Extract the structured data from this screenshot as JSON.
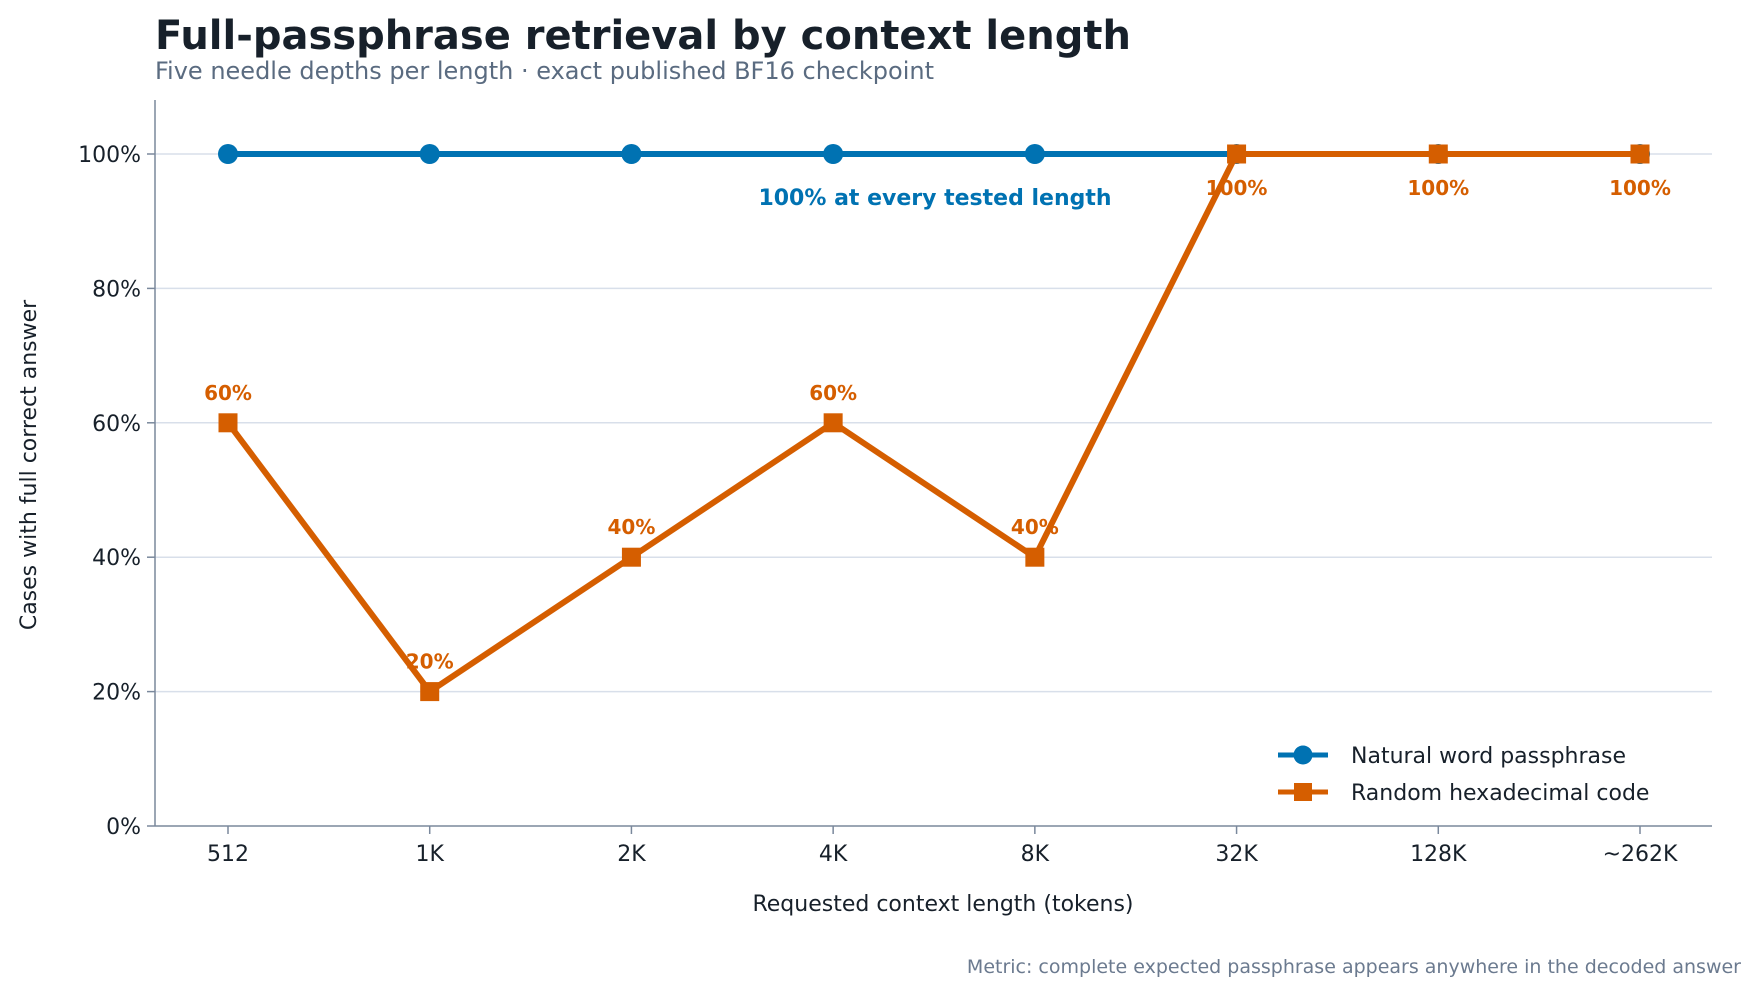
{
  "chart_data": {
    "type": "line",
    "title": "Full-passphrase retrieval by context length",
    "subtitle": "Five needle depths per length · exact published BF16 checkpoint",
    "xlabel": "Requested context length (tokens)",
    "ylabel": "Cases with full correct answer",
    "categories": [
      "512",
      "1K",
      "2K",
      "4K",
      "8K",
      "32K",
      "128K",
      "~262K"
    ],
    "ylim": [
      0,
      100
    ],
    "yticks": [
      0,
      20,
      40,
      60,
      80,
      100
    ],
    "ytick_labels": [
      "0%",
      "20%",
      "40%",
      "60%",
      "80%",
      "100%"
    ],
    "grid": "horizontal",
    "legend_position": "bottom-right",
    "series": [
      {
        "name": "Natural word passphrase",
        "color": "#0072b2",
        "marker": "circle",
        "values": [
          100,
          100,
          100,
          100,
          100,
          100,
          100,
          100
        ]
      },
      {
        "name": "Random hexadecimal code",
        "color": "#d55e00",
        "marker": "square",
        "values": [
          60,
          20,
          40,
          60,
          40,
          100,
          100,
          100
        ],
        "value_labels": [
          "60%",
          "20%",
          "40%",
          "60%",
          "40%",
          "100%",
          "100%",
          "100%"
        ]
      }
    ],
    "annotation": "100% at every tested length",
    "footnote": "Metric: complete expected passphrase appears anywhere in the decoded answer"
  }
}
